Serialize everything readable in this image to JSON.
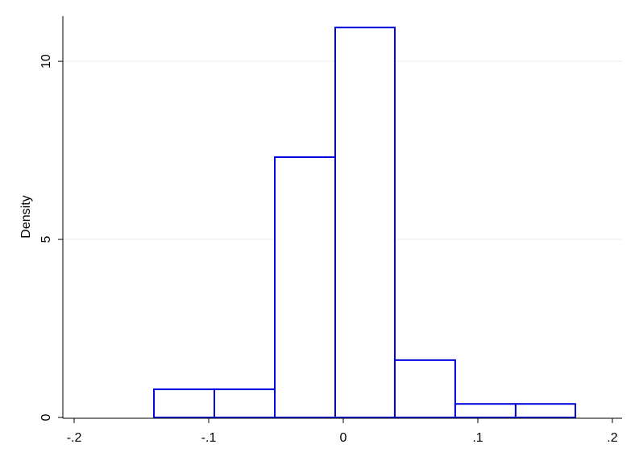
{
  "chart_data": {
    "type": "histogram",
    "y_label": "Density",
    "bins": [
      -0.1407,
      -0.0958,
      -0.0509,
      -0.006,
      0.0383,
      0.0832,
      0.1281,
      0.1725
    ],
    "values": [
      0.79,
      0.79,
      7.31,
      10.95,
      1.61,
      0.38,
      0.38
    ],
    "color": "#0000dd",
    "fill": "#ffffff",
    "xlim": [
      -0.2084,
      0.2072
    ],
    "xticks": [
      {
        "value": -0.2,
        "label": "-.2"
      },
      {
        "value": -0.1,
        "label": "-.1"
      },
      0,
      {
        "value": 0.1,
        "label": ".1"
      },
      {
        "value": 0.2,
        "label": ".2"
      }
    ],
    "ylim": [
      0,
      11.27
    ],
    "yticks": [
      0,
      5,
      10
    ],
    "grid": true,
    "grid_color": "#e6ecf0"
  }
}
